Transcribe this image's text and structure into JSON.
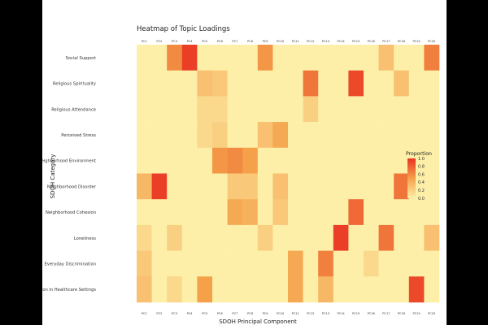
{
  "chart_data": {
    "type": "heatmap",
    "title": "Heatmap of Topic Loadings",
    "xlabel": "SDOH Principal Component",
    "ylabel": "SDOH Category",
    "x_categories": [
      "PC1",
      "PC2",
      "PC3",
      "PC4",
      "PC5",
      "PC6",
      "PC7",
      "PC8",
      "PC9",
      "PC10",
      "PC11",
      "PC12",
      "PC13",
      "PC14",
      "PC15",
      "PC16",
      "PC17",
      "PC18",
      "PC19",
      "PC20"
    ],
    "y_categories": [
      "Social Support",
      "Religious Spirituality",
      "Religious Attendance",
      "Perceived Stress",
      "Neighborhood Environment",
      "Neighborhood Disorder",
      "Neighborhood Cohesion",
      "Loneliness",
      "Everyday Discrimination",
      "Discrimination in Healthcare Settings"
    ],
    "values": [
      [
        0,
        0,
        0.6,
        0.95,
        0,
        0,
        0,
        0,
        0.55,
        0,
        0,
        0,
        0,
        0,
        0,
        0,
        0.3,
        0,
        0,
        0.65
      ],
      [
        0,
        0,
        0,
        0,
        0.3,
        0.25,
        0,
        0,
        0,
        0,
        0,
        0.7,
        0,
        0,
        0.9,
        0,
        0,
        0.3,
        0,
        0
      ],
      [
        0,
        0,
        0,
        0,
        0.15,
        0.15,
        0,
        0,
        0,
        0,
        0,
        0.2,
        0,
        0,
        0,
        0,
        0,
        0,
        0,
        0
      ],
      [
        0,
        0,
        0,
        0,
        0.15,
        0.2,
        0,
        0,
        0.3,
        0.45,
        0,
        0,
        0,
        0,
        0,
        0,
        0,
        0,
        0,
        0
      ],
      [
        0,
        0,
        0,
        0,
        0,
        0.55,
        0.6,
        0.5,
        0,
        0,
        0,
        0,
        0,
        0,
        0,
        0,
        0,
        0,
        0,
        0
      ],
      [
        0.35,
        0.95,
        0,
        0,
        0,
        0,
        0.25,
        0.25,
        0,
        0.3,
        0,
        0,
        0,
        0,
        0,
        0,
        0,
        0.7,
        0,
        0
      ],
      [
        0,
        0,
        0,
        0,
        0,
        0,
        0.45,
        0.4,
        0,
        0.25,
        0,
        0,
        0,
        0,
        0.75,
        0,
        0,
        0,
        0,
        0
      ],
      [
        0.15,
        0,
        0.2,
        0,
        0,
        0,
        0,
        0,
        0.2,
        0,
        0,
        0,
        0,
        0.95,
        0,
        0,
        0.7,
        0,
        0,
        0.3
      ],
      [
        0.25,
        0,
        0,
        0,
        0,
        0,
        0,
        0,
        0,
        0,
        0.45,
        0,
        0.65,
        0,
        0,
        0.15,
        0,
        0,
        0,
        0
      ],
      [
        0.3,
        0,
        0.15,
        0,
        0.5,
        0,
        0,
        0,
        0,
        0,
        0.45,
        0,
        0.35,
        0,
        0,
        0,
        0,
        0,
        0.9,
        0
      ]
    ],
    "zlim": [
      0,
      1
    ],
    "legend": {
      "title": "Proportion",
      "ticks": [
        "0.0",
        "0.2",
        "0.4",
        "0.6",
        "0.8",
        "1.0"
      ],
      "placement": "right"
    },
    "colors": {
      "low": "#FDEFA8",
      "mid": "#F4A14A",
      "high": "#EA3323",
      "background": "#ffffff",
      "page": "#000000"
    },
    "grid": false
  }
}
